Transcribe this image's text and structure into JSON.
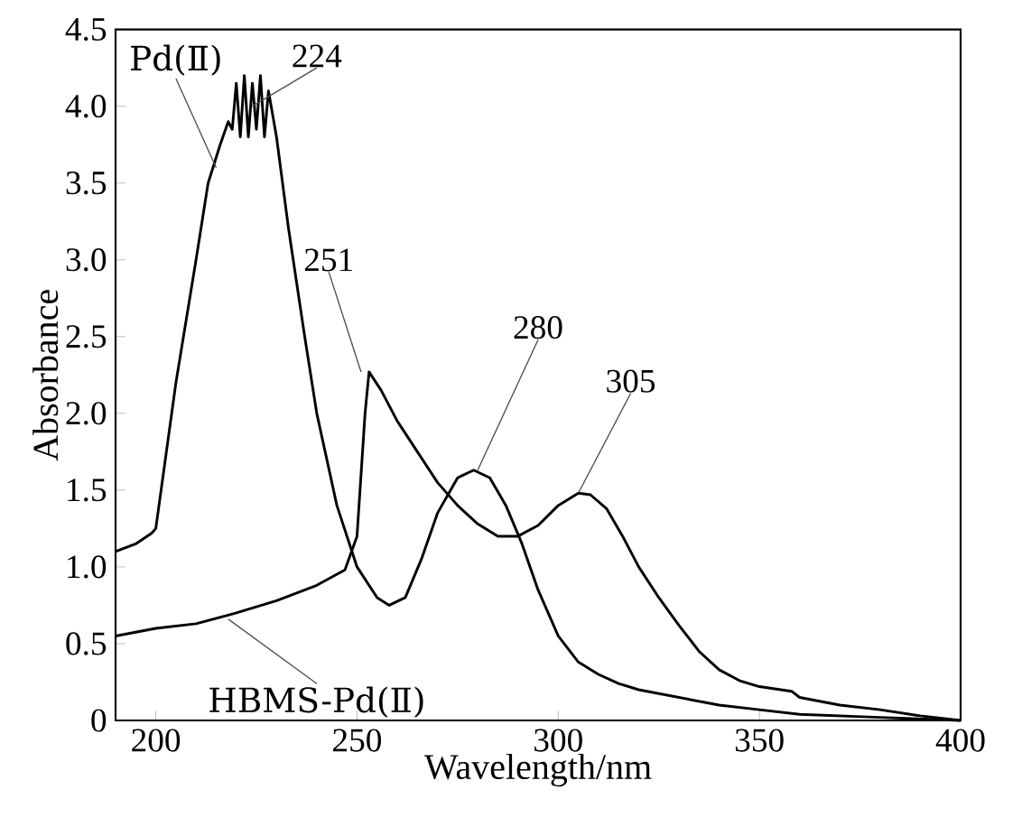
{
  "chart_data": {
    "type": "line",
    "xlabel": "Wavelength/nm",
    "ylabel": "Absorbance",
    "xlim": [
      190,
      400
    ],
    "xticks": [
      200,
      250,
      300,
      350,
      400
    ],
    "ylim": [
      0,
      4.5
    ],
    "yticks": [
      0,
      0.5,
      {
        "value": 1,
        "label": "1.0"
      },
      1.5,
      {
        "value": 2,
        "label": "2.0"
      },
      2.5,
      {
        "value": 3,
        "label": "3.0"
      },
      3.5,
      {
        "value": 4,
        "label": "4.0"
      },
      4.5
    ],
    "legend": false,
    "grid": false,
    "marker": "none",
    "line_style": "solid",
    "series": [
      {
        "name": "Pd(Ⅱ)",
        "color": "#000000",
        "x": [
          190,
          195,
          199,
          200,
          205,
          210,
          213,
          216,
          218,
          219,
          220,
          221,
          222,
          223,
          224,
          225,
          226,
          227,
          228,
          230,
          233,
          237,
          240,
          245,
          250,
          255,
          258,
          262,
          266,
          270,
          275,
          279,
          283,
          287,
          291,
          295,
          300,
          305,
          310,
          315,
          320,
          330,
          340,
          350,
          360,
          380,
          400
        ],
        "values": [
          1.1,
          1.15,
          1.22,
          1.25,
          2.2,
          3.0,
          3.5,
          3.75,
          3.9,
          3.85,
          4.15,
          3.8,
          4.2,
          3.8,
          4.15,
          3.85,
          4.2,
          3.8,
          4.1,
          3.8,
          3.2,
          2.5,
          2.0,
          1.4,
          1.0,
          0.8,
          0.75,
          0.8,
          1.05,
          1.35,
          1.58,
          1.63,
          1.58,
          1.4,
          1.15,
          0.85,
          0.55,
          0.38,
          0.3,
          0.24,
          0.2,
          0.15,
          0.1,
          0.07,
          0.04,
          0.02,
          0
        ]
      },
      {
        "name": "HBMS-Pd(Ⅱ)",
        "color": "#000000",
        "x": [
          190,
          200,
          210,
          220,
          230,
          240,
          247,
          250,
          252,
          253,
          256,
          260,
          265,
          270,
          275,
          280,
          285,
          290,
          295,
          300,
          305,
          308,
          312,
          316,
          320,
          325,
          330,
          335,
          340,
          345,
          350,
          358,
          360,
          370,
          380,
          390,
          400
        ],
        "values": [
          0.55,
          0.6,
          0.63,
          0.7,
          0.78,
          0.88,
          0.98,
          1.2,
          2.0,
          2.27,
          2.15,
          1.95,
          1.75,
          1.55,
          1.4,
          1.28,
          1.2,
          1.2,
          1.27,
          1.4,
          1.48,
          1.47,
          1.38,
          1.2,
          1.0,
          0.8,
          0.62,
          0.45,
          0.33,
          0.26,
          0.22,
          0.19,
          0.15,
          0.1,
          0.07,
          0.03,
          0
        ]
      }
    ],
    "annotations": [
      {
        "text": "224",
        "x": 224,
        "y": 4.0
      },
      {
        "text": "251",
        "x": 251,
        "y": 2.27
      },
      {
        "text": "280",
        "x": 280,
        "y": 1.63
      },
      {
        "text": "305",
        "x": 305,
        "y": 1.48
      }
    ]
  }
}
